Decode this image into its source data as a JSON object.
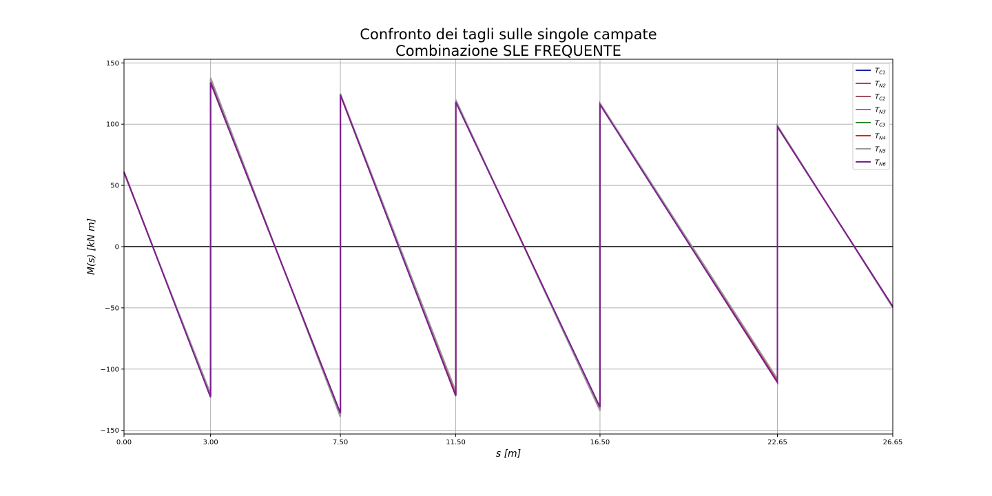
{
  "title_line1": "Confronto dei tagli sulle singole campate",
  "title_line2": "Combinazione SLE FREQUENTE",
  "chart_data": {
    "type": "line",
    "xlabel": "s [m]",
    "ylabel": "M(s) [kN m]",
    "xlim": [
      0,
      26.65
    ],
    "ylim": [
      -153,
      153
    ],
    "xticks": [
      0,
      3.0,
      7.5,
      11.5,
      16.5,
      22.65,
      26.65
    ],
    "xtick_labels": [
      "0.00",
      "3.00",
      "7.50",
      "11.50",
      "16.50",
      "22.65",
      "26.65"
    ],
    "yticks": [
      -150,
      -100,
      -50,
      0,
      50,
      100,
      150
    ],
    "ytick_labels": [
      "−150",
      "−100",
      "−50",
      "0",
      "50",
      "100",
      "150"
    ],
    "grid": true,
    "legend_position": "top-right",
    "zero_line": true,
    "series": [
      {
        "name": "C1",
        "color": "#1f1fa8",
        "x": [
          0,
          3.0,
          3.0,
          7.5,
          7.5,
          11.5,
          11.5,
          16.5,
          16.5,
          22.65,
          22.65,
          26.65
        ],
        "y": [
          61,
          -122,
          134,
          -136,
          124,
          -121,
          119,
          -132,
          117,
          -110,
          98,
          -49
        ]
      },
      {
        "name": "N2",
        "color": "#e03030",
        "x": [
          0,
          3.0,
          3.0,
          7.5,
          7.5,
          11.5,
          11.5,
          16.5,
          16.5,
          22.65,
          22.65,
          26.65
        ],
        "y": [
          61,
          -122,
          134,
          -136,
          124,
          -121,
          119,
          -132,
          117,
          -110,
          98,
          -49
        ]
      },
      {
        "name": "C2",
        "color": "#a0525a",
        "x": [
          0,
          3.0,
          3.0,
          7.5,
          7.5,
          11.5,
          11.5,
          16.5,
          16.5,
          22.65,
          22.65,
          26.65
        ],
        "y": [
          61,
          -122,
          135,
          -137,
          124,
          -121,
          119,
          -133,
          117,
          -110,
          98,
          -49
        ]
      },
      {
        "name": "N3",
        "color": "#e040e0",
        "x": [
          0,
          3.0,
          3.0,
          7.5,
          7.5,
          11.5,
          11.5,
          16.5,
          16.5,
          22.65,
          22.65,
          26.65
        ],
        "y": [
          61,
          -122,
          134,
          -136,
          124,
          -121,
          119,
          -132,
          117,
          -110,
          98,
          -49
        ]
      },
      {
        "name": "C3",
        "color": "#2e8b2e",
        "x": [
          0,
          3.0,
          3.0,
          7.5,
          7.5,
          11.5,
          11.5,
          16.5,
          16.5,
          22.65,
          22.65,
          26.65
        ],
        "y": [
          61,
          -122,
          134,
          -136,
          124,
          -121,
          119,
          -132,
          117,
          -110,
          98,
          -49
        ]
      },
      {
        "name": "N4",
        "color": "#e02020",
        "x": [
          0,
          3.0,
          3.0,
          7.5,
          7.5,
          11.5,
          11.5,
          16.5,
          16.5,
          22.65,
          22.65,
          26.65
        ],
        "y": [
          61,
          -122,
          134,
          -136,
          124,
          -121,
          119,
          -132,
          117,
          -110,
          98,
          -49
        ]
      },
      {
        "name": "N5",
        "color": "#999999",
        "x": [
          0,
          3.0,
          3.0,
          7.5,
          7.5,
          11.5,
          11.5,
          16.5,
          16.5,
          22.65,
          22.65,
          26.65
        ],
        "y": [
          60,
          -120,
          138,
          -139,
          125,
          -118,
          120,
          -134,
          117,
          -108,
          99,
          -50
        ]
      },
      {
        "name": "N6",
        "color": "#7a1f8f",
        "x": [
          0,
          3.0,
          3.0,
          7.5,
          7.5,
          11.5,
          11.5,
          16.5,
          16.5,
          22.65,
          22.65,
          26.65
        ],
        "y": [
          61,
          -123,
          134,
          -136,
          124,
          -122,
          118,
          -131,
          116,
          -111,
          98,
          -49
        ]
      }
    ]
  }
}
